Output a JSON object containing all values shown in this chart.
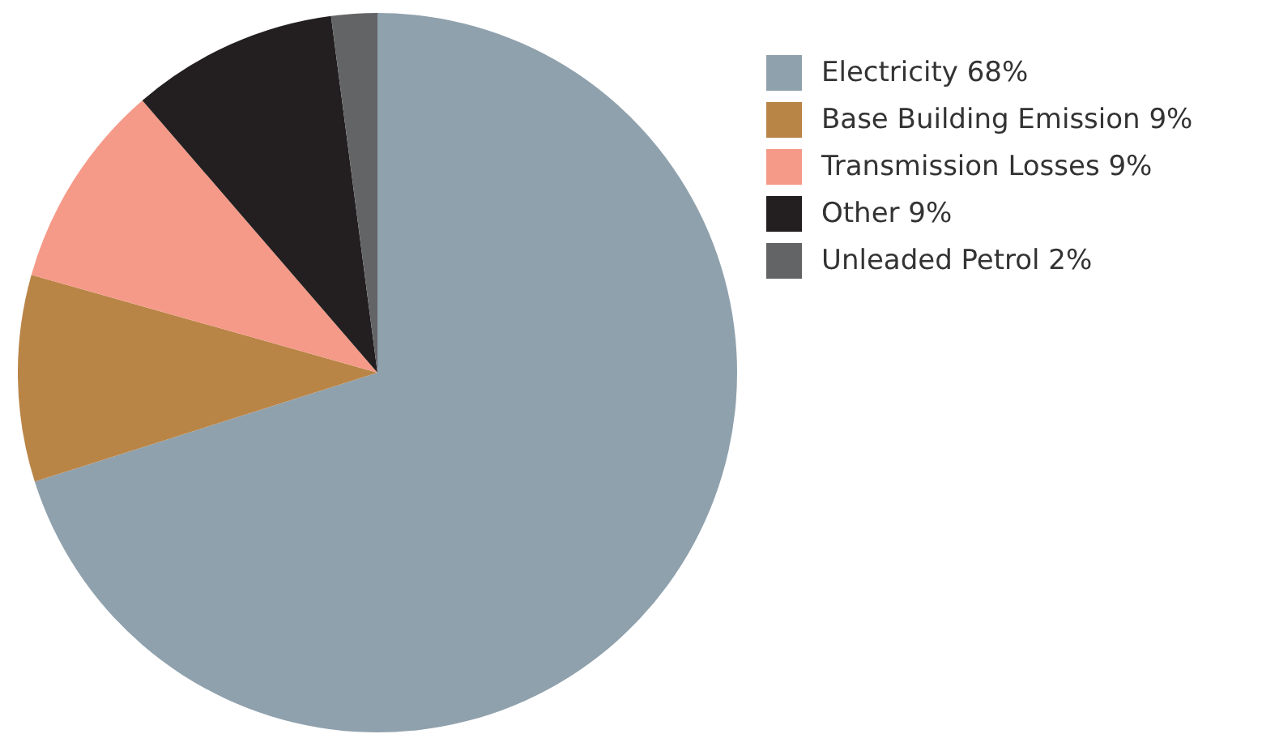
{
  "chart_data": {
    "type": "pie",
    "categories": [
      "Electricity 68%",
      "Base Building Emission 9%",
      "Transmission Losses 9%",
      "Other 9%",
      "Unleaded Petrol 2%"
    ],
    "values": [
      68,
      9,
      9,
      9,
      2
    ],
    "colors": [
      "#8fa1ad",
      "#b98547",
      "#f59a88",
      "#231f20",
      "#636466"
    ],
    "legend": "top right"
  }
}
